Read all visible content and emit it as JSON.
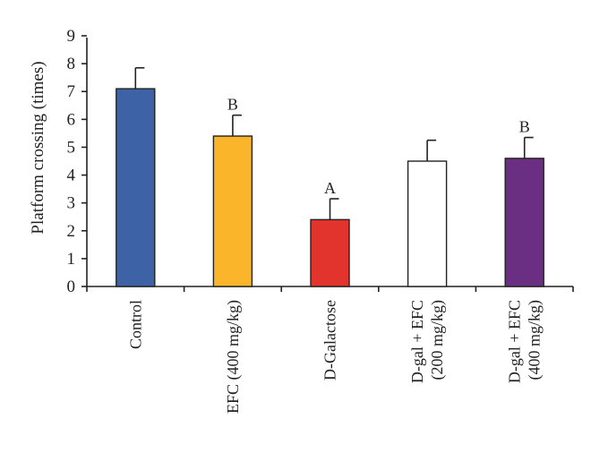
{
  "chart_data": {
    "type": "bar",
    "title": "",
    "xlabel": "",
    "ylabel": "Platform crossing (times)",
    "ylim": [
      0,
      9
    ],
    "yticks": [
      0,
      1,
      2,
      3,
      4,
      5,
      6,
      7,
      8,
      9
    ],
    "grid": false,
    "categories": [
      [
        "Control"
      ],
      [
        "EFC (400 mg/kg)"
      ],
      [
        "D-Galactose"
      ],
      [
        "D-gal + EFC",
        "(200 mg/kg)"
      ],
      [
        "D-gal + EFC",
        "(400 mg/kg)"
      ]
    ],
    "values": [
      7.1,
      5.4,
      2.4,
      4.5,
      4.6
    ],
    "errors": [
      0.75,
      0.75,
      0.75,
      0.75,
      0.75
    ],
    "colors": [
      "#3d62a6",
      "#fbb52a",
      "#e2342c",
      "#ffffff",
      "#6a2f82"
    ],
    "significance": [
      "",
      "B",
      "A",
      "",
      "B"
    ]
  }
}
